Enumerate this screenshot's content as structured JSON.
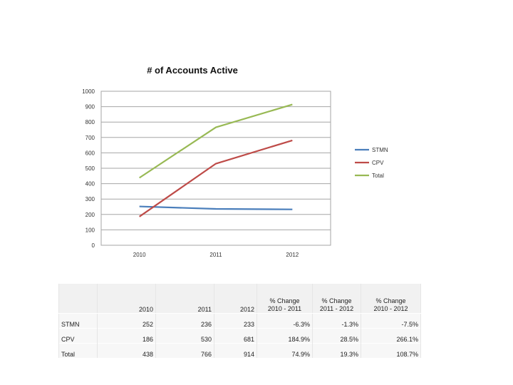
{
  "chart_data": {
    "type": "line",
    "title": "# of Accounts Active",
    "categories": [
      "2010",
      "2011",
      "2012"
    ],
    "ylim": [
      0,
      1000
    ],
    "yticks": [
      0,
      100,
      200,
      300,
      400,
      500,
      600,
      700,
      800,
      900,
      1000
    ],
    "grid": true,
    "legend_position": "right",
    "series": [
      {
        "name": "STMN",
        "values": [
          252,
          236,
          233
        ],
        "color": "#4a7ebb"
      },
      {
        "name": "CPV",
        "values": [
          186,
          530,
          681
        ],
        "color": "#be4b48"
      },
      {
        "name": "Total",
        "values": [
          438,
          766,
          914
        ],
        "color": "#98b954"
      }
    ]
  },
  "table": {
    "headers": {
      "y2010": "2010",
      "y2011": "2011",
      "y2012": "2012",
      "chg_10_11_line1": "% Change",
      "chg_10_11_line2": "2010 - 2011",
      "chg_11_12_line1": "% Change",
      "chg_11_12_line2": "2011 - 2012",
      "chg_10_12_line1": "% Change",
      "chg_10_12_line2": "2010 - 2012"
    },
    "rows": [
      {
        "label": "STMN",
        "v2010": "252",
        "v2011": "236",
        "v2012": "233",
        "c1": "-6.3%",
        "c2": "-1.3%",
        "c3": "-7.5%"
      },
      {
        "label": "CPV",
        "v2010": "186",
        "v2011": "530",
        "v2012": "681",
        "c1": "184.9%",
        "c2": "28.5%",
        "c3": "266.1%"
      },
      {
        "label": "Total",
        "v2010": "438",
        "v2011": "766",
        "v2012": "914",
        "c1": "74.9%",
        "c2": "19.3%",
        "c3": "108.7%"
      }
    ]
  }
}
